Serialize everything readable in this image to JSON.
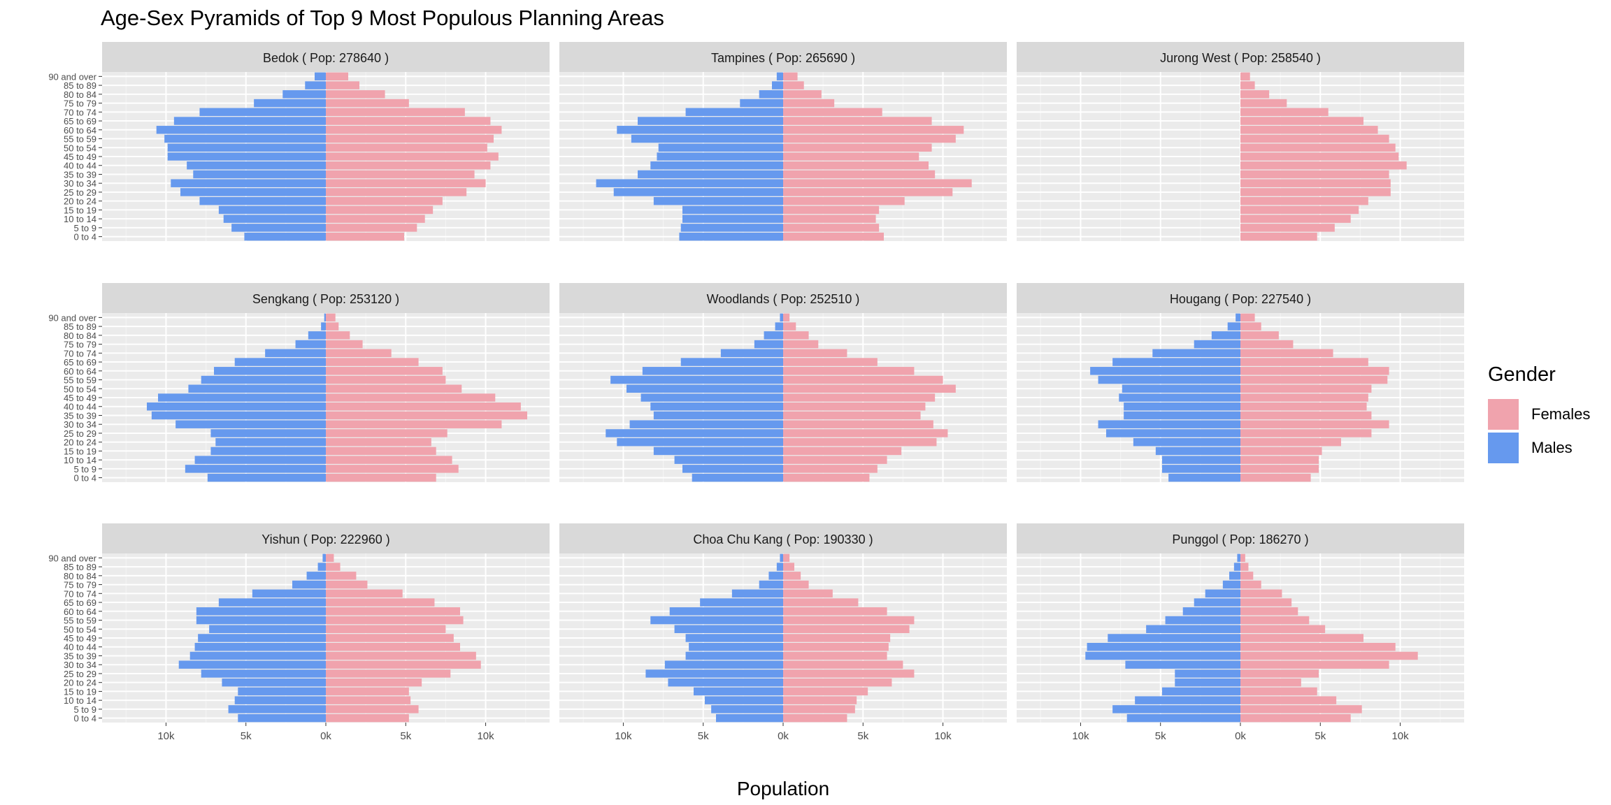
{
  "chart_data": {
    "type": "bar",
    "title": "Age-Sex Pyramids of Top 9 Most Populous Planning Areas",
    "xlabel": "Population",
    "ylabel": "",
    "xlim": [
      -14000,
      14000
    ],
    "x_ticks": [
      -10000,
      -5000,
      0,
      5000,
      10000
    ],
    "x_tick_labels": [
      "10k",
      "5k",
      "0k",
      "5k",
      "10k"
    ],
    "categories": [
      "0 to 4",
      "5 to 9",
      "10 to 14",
      "15 to 19",
      "20 to 24",
      "25 to 29",
      "30 to 34",
      "35 to 39",
      "40 to 44",
      "45 to 49",
      "50 to 54",
      "55 to 59",
      "60 to 64",
      "65 to 69",
      "70 to 74",
      "75 to 79",
      "80 to 84",
      "85 to 89",
      "90 and over"
    ],
    "grid": true,
    "legend": {
      "title": "Gender",
      "position": "right",
      "items": [
        {
          "name": "Females",
          "color": "#F0A3AD"
        },
        {
          "name": "Males",
          "color": "#6699EE"
        }
      ]
    },
    "panels": [
      {
        "label": "Bedok ( Pop: 278640 )",
        "females": [
          4900,
          5700,
          6200,
          6700,
          7300,
          8800,
          10000,
          9300,
          10300,
          10800,
          10100,
          10500,
          11000,
          10300,
          8700,
          5200,
          3700,
          2100,
          1400
        ],
        "males": [
          5100,
          5900,
          6400,
          6700,
          7900,
          9100,
          9700,
          8300,
          8700,
          9900,
          9900,
          10100,
          10600,
          9500,
          7900,
          4500,
          2700,
          1300,
          700
        ]
      },
      {
        "label": "Tampines ( Pop: 265690 )",
        "females": [
          6300,
          6000,
          5800,
          6000,
          7600,
          10600,
          11800,
          9500,
          9100,
          8500,
          9300,
          10800,
          11300,
          9300,
          6200,
          3200,
          2400,
          1300,
          900
        ],
        "males": [
          6500,
          6400,
          6300,
          6300,
          8100,
          10600,
          11700,
          9100,
          8300,
          7900,
          7800,
          9500,
          10400,
          9100,
          6100,
          2700,
          1500,
          700,
          400
        ]
      },
      {
        "label": "Jurong West ( Pop: 258540 )",
        "females": [
          4800,
          5900,
          6900,
          7400,
          8000,
          9400,
          9400,
          9300,
          10400,
          9900,
          9700,
          9300,
          8600,
          7700,
          5500,
          2900,
          1800,
          900,
          600
        ]
      },
      {
        "label": "Sengkang ( Pop: 253120 )",
        "females": [
          6900,
          8300,
          7900,
          6900,
          6600,
          7600,
          11000,
          12600,
          12200,
          10600,
          8500,
          7500,
          7300,
          5800,
          4100,
          2300,
          1500,
          800,
          600
        ],
        "males": [
          7400,
          8800,
          8200,
          7200,
          6900,
          7200,
          9400,
          10900,
          11200,
          10500,
          8600,
          7800,
          7000,
          5700,
          3800,
          1900,
          1100,
          300,
          100
        ]
      },
      {
        "label": "Woodlands ( Pop: 252510 )",
        "females": [
          5400,
          5900,
          6500,
          7400,
          9600,
          10300,
          9400,
          8600,
          8900,
          9500,
          10800,
          10000,
          8200,
          5900,
          4000,
          2200,
          1600,
          800,
          400
        ],
        "males": [
          5700,
          6300,
          6800,
          8100,
          10400,
          11100,
          9600,
          8100,
          8300,
          8900,
          9800,
          10800,
          8800,
          6400,
          3900,
          1800,
          1200,
          500,
          200
        ]
      },
      {
        "label": "Hougang ( Pop: 227540 )",
        "females": [
          4400,
          4900,
          4900,
          5100,
          6300,
          8200,
          9300,
          8200,
          7900,
          8000,
          8200,
          9200,
          9300,
          8000,
          5800,
          3300,
          2400,
          1300,
          900
        ],
        "males": [
          4500,
          4900,
          4900,
          5300,
          6700,
          8400,
          8900,
          7300,
          7300,
          7600,
          7400,
          8900,
          9400,
          8000,
          5500,
          2900,
          1800,
          800,
          300
        ]
      },
      {
        "label": "Yishun ( Pop: 222960 )",
        "females": [
          5200,
          5800,
          5300,
          5200,
          6000,
          7800,
          9700,
          9400,
          8400,
          8000,
          7500,
          8600,
          8400,
          6800,
          4800,
          2600,
          1900,
          900,
          500
        ],
        "males": [
          5500,
          6100,
          5700,
          5500,
          6500,
          7800,
          9200,
          8500,
          8200,
          8000,
          7300,
          8100,
          8100,
          6700,
          4600,
          2100,
          1200,
          500,
          200
        ]
      },
      {
        "label": "Choa Chu Kang ( Pop: 190330 )",
        "females": [
          4000,
          4500,
          4600,
          5300,
          6800,
          8200,
          7500,
          6500,
          6600,
          6700,
          7900,
          8200,
          6500,
          4700,
          3100,
          1600,
          1100,
          700,
          400
        ],
        "males": [
          4200,
          4500,
          4900,
          5600,
          7200,
          8600,
          7400,
          6100,
          5900,
          6100,
          6800,
          8300,
          7100,
          5200,
          3200,
          1500,
          900,
          400,
          200
        ]
      },
      {
        "label": "Punggol ( Pop: 186270 )",
        "females": [
          6900,
          7600,
          6000,
          4800,
          3800,
          4900,
          9300,
          11100,
          9700,
          7700,
          5300,
          4300,
          3600,
          3200,
          2600,
          1300,
          800,
          500,
          300
        ],
        "males": [
          7100,
          8000,
          6600,
          4900,
          4100,
          4100,
          7200,
          9700,
          9600,
          8300,
          5900,
          4700,
          3600,
          2900,
          2200,
          1100,
          700,
          400,
          200
        ]
      }
    ]
  }
}
